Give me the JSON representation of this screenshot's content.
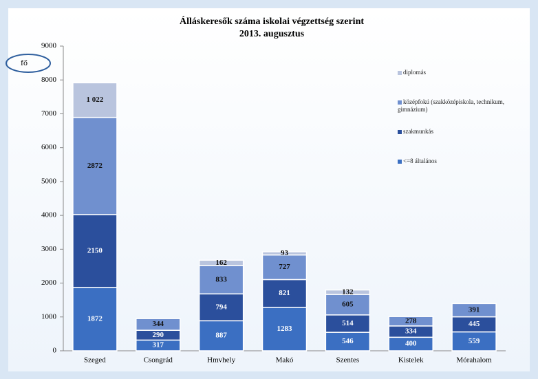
{
  "chart_data": {
    "type": "stacked_bar",
    "title": "Álláskeresők száma iskolai végzettség szerint",
    "subtitle": "2013. augusztus",
    "annotation": "fő",
    "categories": [
      "Szeged",
      "Csongrád",
      "Hmvhely",
      "Makó",
      "Szentes",
      "Kistelek",
      "Mórahalom"
    ],
    "series": [
      {
        "name": "<=8 általános",
        "color": "#3b6fc2",
        "values": [
          1872,
          317,
          887,
          1283,
          546,
          400,
          559
        ],
        "value_labels": [
          "1872",
          "317",
          "887",
          "1283",
          "546",
          "400",
          "559"
        ]
      },
      {
        "name": "szakmunkás",
        "color": "#2b4f9c",
        "values": [
          2150,
          290,
          794,
          821,
          514,
          334,
          445
        ],
        "value_labels": [
          "2150",
          "290",
          "794",
          "821",
          "514",
          "334",
          "445"
        ]
      },
      {
        "name": "középfokú (szakközépiskola, technikum, gimnázium)",
        "color": "#7090cf",
        "values": [
          2872,
          344,
          833,
          727,
          605,
          278,
          391
        ],
        "value_labels": [
          "2872",
          "344",
          "833",
          "727",
          "605",
          "278",
          "391"
        ]
      },
      {
        "name": "diplomás",
        "color": "#b9c4de",
        "values": [
          1022,
          null,
          162,
          93,
          132,
          null,
          null
        ],
        "value_labels": [
          "1 022",
          null,
          "162",
          "93",
          "132",
          null,
          null
        ]
      }
    ],
    "ylim": [
      0,
      9000
    ],
    "yticks": [
      0,
      1000,
      2000,
      3000,
      4000,
      5000,
      6000,
      7000,
      8000,
      9000
    ],
    "legend": "right"
  }
}
